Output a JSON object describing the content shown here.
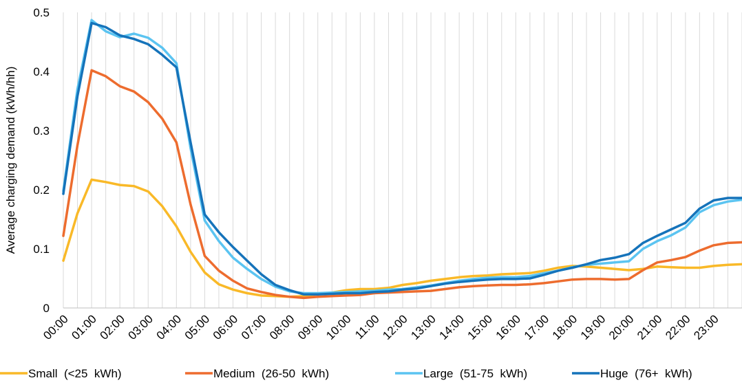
{
  "chart_data": {
    "type": "line",
    "title": "",
    "xlabel": "",
    "ylabel": "Average charging demand (kWh/hh)",
    "ylim": [
      0,
      0.5
    ],
    "yticks": [
      0,
      0.1,
      0.2,
      0.3,
      0.4,
      0.5
    ],
    "ytick_labels": [
      "0",
      "0.1",
      "0.2",
      "0.3",
      "0.4",
      "0.5"
    ],
    "xtick_labels": [
      "00:00",
      "01:00",
      "02:00",
      "03:00",
      "04:00",
      "05:00",
      "06:00",
      "07:00",
      "08:00",
      "09:00",
      "10:00",
      "11:00",
      "12:00",
      "13:00",
      "14:00",
      "15:00",
      "16:00",
      "17:00",
      "18:00",
      "19:00",
      "20:00",
      "21:00",
      "22:00",
      "23:00"
    ],
    "grid": "vertical",
    "legend": "bottom",
    "series": [
      {
        "name": "Small  (<25  kWh)",
        "color": "#F9B928",
        "values": [
          0.08,
          0.16,
          0.217,
          0.213,
          0.208,
          0.206,
          0.197,
          0.172,
          0.138,
          0.095,
          0.06,
          0.04,
          0.031,
          0.025,
          0.021,
          0.02,
          0.019,
          0.02,
          0.023,
          0.026,
          0.03,
          0.032,
          0.032,
          0.034,
          0.039,
          0.042,
          0.046,
          0.049,
          0.052,
          0.054,
          0.055,
          0.057,
          0.058,
          0.059,
          0.063,
          0.068,
          0.071,
          0.07,
          0.068,
          0.066,
          0.064,
          0.066,
          0.07,
          0.069,
          0.068,
          0.068,
          0.071,
          0.073,
          0.074
        ]
      },
      {
        "name": "Medium  (26-50  kWh)",
        "color": "#ED6C2E",
        "values": [
          0.122,
          0.275,
          0.402,
          0.392,
          0.375,
          0.366,
          0.348,
          0.32,
          0.28,
          0.175,
          0.088,
          0.063,
          0.046,
          0.033,
          0.027,
          0.022,
          0.019,
          0.017,
          0.019,
          0.02,
          0.021,
          0.022,
          0.025,
          0.026,
          0.027,
          0.028,
          0.029,
          0.032,
          0.035,
          0.037,
          0.038,
          0.039,
          0.039,
          0.04,
          0.042,
          0.045,
          0.048,
          0.049,
          0.049,
          0.048,
          0.049,
          0.064,
          0.077,
          0.081,
          0.086,
          0.097,
          0.106,
          0.11,
          0.111
        ]
      },
      {
        "name": "Large  (51-75  kWh)",
        "color": "#5BC4F1",
        "values": [
          0.198,
          0.37,
          0.487,
          0.468,
          0.458,
          0.464,
          0.457,
          0.44,
          0.414,
          0.27,
          0.148,
          0.113,
          0.085,
          0.066,
          0.049,
          0.036,
          0.028,
          0.025,
          0.025,
          0.026,
          0.027,
          0.028,
          0.029,
          0.031,
          0.032,
          0.035,
          0.038,
          0.042,
          0.046,
          0.049,
          0.051,
          0.052,
          0.052,
          0.054,
          0.059,
          0.063,
          0.069,
          0.073,
          0.075,
          0.077,
          0.079,
          0.1,
          0.113,
          0.123,
          0.136,
          0.162,
          0.174,
          0.18,
          0.183
        ]
      },
      {
        "name": "Huge  (76+  kWh)",
        "color": "#1573BA",
        "values": [
          0.193,
          0.358,
          0.482,
          0.475,
          0.461,
          0.455,
          0.446,
          0.428,
          0.407,
          0.28,
          0.158,
          0.128,
          0.103,
          0.08,
          0.057,
          0.039,
          0.03,
          0.023,
          0.023,
          0.024,
          0.025,
          0.025,
          0.027,
          0.028,
          0.031,
          0.033,
          0.037,
          0.041,
          0.044,
          0.046,
          0.048,
          0.049,
          0.049,
          0.05,
          0.056,
          0.063,
          0.068,
          0.074,
          0.081,
          0.085,
          0.091,
          0.11,
          0.122,
          0.133,
          0.144,
          0.168,
          0.182,
          0.186,
          0.186
        ]
      }
    ]
  }
}
